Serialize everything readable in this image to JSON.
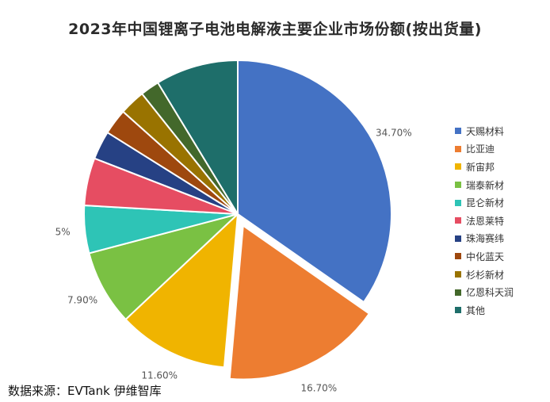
{
  "title": "2023年中国锂离子电池电解液主要企业市场份额(按出货量)",
  "source": "数据来源：EVTank 伊维智库",
  "chart_data": {
    "type": "pie",
    "title": "2023年中国锂离子电池电解液主要企业市场份额(按出货量)",
    "legend_position": "right",
    "slices": [
      {
        "name": "天赐材料",
        "value": 34.7,
        "label": "34.70%",
        "color": "#4472C4"
      },
      {
        "name": "比亚迪",
        "value": 16.7,
        "label": "16.70%",
        "color": "#ED7D31",
        "exploded": true
      },
      {
        "name": "新宙邦",
        "value": 11.6,
        "label": "11.60%",
        "color": "#F0B400"
      },
      {
        "name": "瑞泰新材",
        "value": 7.9,
        "label": "7.90%",
        "color": "#7AC143"
      },
      {
        "name": "昆仑新材",
        "value": 5.0,
        "label": "5%",
        "color": "#2EC4B6"
      },
      {
        "name": "法恩莱特",
        "value": 5.0,
        "label": "",
        "color": "#E64D62"
      },
      {
        "name": "珠海赛纬",
        "value": 3.0,
        "label": "",
        "color": "#264184"
      },
      {
        "name": "中化蓝天",
        "value": 2.7,
        "label": "",
        "color": "#9E480E"
      },
      {
        "name": "杉杉新材",
        "value": 2.7,
        "label": "",
        "color": "#997300"
      },
      {
        "name": "亿恩科天润",
        "value": 2.0,
        "label": "",
        "color": "#43682B"
      },
      {
        "name": "其他",
        "value": 8.7,
        "label": "",
        "color": "#1E6E6A"
      }
    ]
  }
}
